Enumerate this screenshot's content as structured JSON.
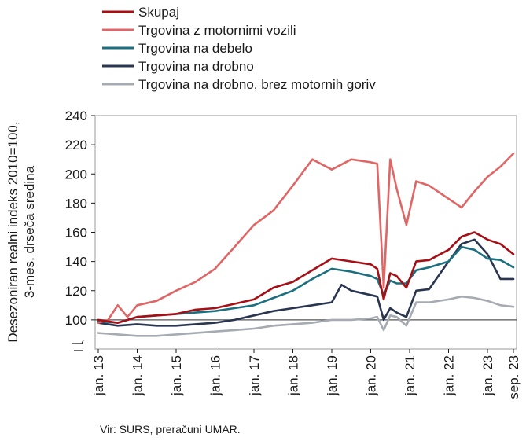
{
  "chart_data": {
    "type": "line",
    "ylabel_lines": [
      "Desezoniran realni indeks 2010=100,",
      "3-mes. drseča sredina"
    ],
    "ylim": [
      80,
      240
    ],
    "yticks": [
      100,
      120,
      140,
      160,
      180,
      200,
      220,
      240
    ],
    "x_start": "2013-01",
    "x_end": "2023-09",
    "xticks": [
      "jan. 13",
      "jan. 14",
      "jan. 15",
      "jan. 16",
      "jan. 17",
      "jan. 18",
      "jan. 19",
      "jan. 20",
      "jan. 21",
      "jan. 22",
      "jan. 23",
      "sep. 23"
    ],
    "reference_line": 100,
    "grid": false,
    "legend_position": "top-left",
    "series": [
      {
        "name": "Skupaj",
        "color": "#a50f15",
        "x": [
          "2013-01",
          "2013-07",
          "2014-01",
          "2014-07",
          "2015-01",
          "2015-07",
          "2016-01",
          "2016-07",
          "2017-01",
          "2017-07",
          "2018-01",
          "2018-07",
          "2019-01",
          "2019-07",
          "2020-01",
          "2020-03",
          "2020-05",
          "2020-07",
          "2020-09",
          "2020-12",
          "2021-03",
          "2021-07",
          "2022-01",
          "2022-05",
          "2022-09",
          "2023-01",
          "2023-05",
          "2023-09"
        ],
        "values": [
          100,
          98,
          102,
          103,
          104,
          107,
          108,
          111,
          114,
          122,
          126,
          134,
          142,
          140,
          138,
          135,
          114,
          132,
          130,
          122,
          140,
          141,
          148,
          157,
          160,
          155,
          152,
          145
        ]
      },
      {
        "name": "Trgovina z motornimi vozili",
        "color": "#e06666",
        "x": [
          "2013-01",
          "2013-04",
          "2013-07",
          "2013-10",
          "2014-01",
          "2014-07",
          "2015-01",
          "2015-07",
          "2016-01",
          "2016-07",
          "2017-01",
          "2017-07",
          "2018-01",
          "2018-07",
          "2019-01",
          "2019-07",
          "2020-01",
          "2020-03",
          "2020-05",
          "2020-07",
          "2020-09",
          "2020-12",
          "2021-03",
          "2021-07",
          "2022-01",
          "2022-05",
          "2022-09",
          "2023-01",
          "2023-05",
          "2023-09"
        ],
        "values": [
          98,
          100,
          110,
          102,
          110,
          113,
          120,
          126,
          135,
          150,
          165,
          175,
          192,
          210,
          203,
          210,
          208,
          207,
          122,
          210,
          190,
          165,
          195,
          192,
          183,
          177,
          188,
          198,
          205,
          214
        ]
      },
      {
        "name": "Trgovina na debelo",
        "color": "#1b6f7e",
        "x": [
          "2013-01",
          "2013-07",
          "2014-01",
          "2014-07",
          "2015-01",
          "2015-07",
          "2016-01",
          "2016-07",
          "2017-01",
          "2017-07",
          "2018-01",
          "2018-07",
          "2019-01",
          "2019-07",
          "2020-01",
          "2020-03",
          "2020-05",
          "2020-07",
          "2020-09",
          "2020-12",
          "2021-03",
          "2021-07",
          "2022-01",
          "2022-05",
          "2022-09",
          "2023-01",
          "2023-05",
          "2023-09"
        ],
        "values": [
          99,
          98,
          102,
          103,
          104,
          105,
          106,
          108,
          110,
          115,
          120,
          128,
          135,
          133,
          130,
          128,
          117,
          127,
          125,
          125,
          134,
          136,
          140,
          150,
          148,
          142,
          141,
          136
        ]
      },
      {
        "name": "Trgovina na drobno",
        "color": "#2a3550",
        "x": [
          "2013-01",
          "2013-07",
          "2014-01",
          "2014-07",
          "2015-01",
          "2015-07",
          "2016-01",
          "2016-07",
          "2017-01",
          "2017-07",
          "2018-01",
          "2018-07",
          "2019-01",
          "2019-04",
          "2019-07",
          "2020-01",
          "2020-03",
          "2020-05",
          "2020-07",
          "2020-09",
          "2020-12",
          "2021-03",
          "2021-07",
          "2022-01",
          "2022-05",
          "2022-09",
          "2023-01",
          "2023-05",
          "2023-09"
        ],
        "values": [
          98,
          96,
          97,
          96,
          96,
          97,
          98,
          100,
          103,
          106,
          108,
          110,
          112,
          124,
          120,
          117,
          116,
          100,
          108,
          105,
          102,
          120,
          121,
          140,
          152,
          155,
          145,
          128,
          128
        ]
      },
      {
        "name": "Trgovina na drobno, brez motornih goriv",
        "color": "#a6abb3",
        "x": [
          "2013-01",
          "2013-07",
          "2014-01",
          "2014-07",
          "2015-01",
          "2015-07",
          "2016-01",
          "2016-07",
          "2017-01",
          "2017-07",
          "2018-01",
          "2018-07",
          "2019-01",
          "2019-07",
          "2020-01",
          "2020-03",
          "2020-05",
          "2020-07",
          "2020-09",
          "2020-12",
          "2021-03",
          "2021-07",
          "2022-01",
          "2022-05",
          "2022-09",
          "2023-01",
          "2023-05",
          "2023-09"
        ],
        "values": [
          91,
          90,
          89,
          89,
          90,
          91,
          92,
          93,
          94,
          96,
          97,
          98,
          100,
          100,
          101,
          102,
          93,
          103,
          102,
          96,
          112,
          112,
          114,
          116,
          115,
          113,
          110,
          109
        ]
      }
    ]
  },
  "source": "Vir: SURS, preračuni UMAR."
}
